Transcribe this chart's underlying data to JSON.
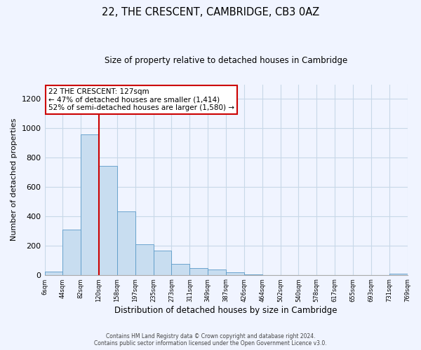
{
  "title": "22, THE CRESCENT, CAMBRIDGE, CB3 0AZ",
  "subtitle": "Size of property relative to detached houses in Cambridge",
  "bar_color": "#c8ddf0",
  "bar_edge_color": "#5a9ac8",
  "bar_heights": [
    20,
    310,
    960,
    745,
    435,
    210,
    165,
    75,
    48,
    35,
    18,
    5,
    0,
    0,
    0,
    0,
    0,
    0,
    0,
    8
  ],
  "x_labels": [
    "6sqm",
    "44sqm",
    "82sqm",
    "120sqm",
    "158sqm",
    "197sqm",
    "235sqm",
    "273sqm",
    "311sqm",
    "349sqm",
    "387sqm",
    "426sqm",
    "464sqm",
    "502sqm",
    "540sqm",
    "578sqm",
    "617sqm",
    "655sqm",
    "693sqm",
    "731sqm",
    "769sqm"
  ],
  "ylabel": "Number of detached properties",
  "xlabel": "Distribution of detached houses by size in Cambridge",
  "ylim": [
    0,
    1300
  ],
  "yticks": [
    0,
    200,
    400,
    600,
    800,
    1000,
    1200
  ],
  "vline_x": 3.0,
  "vline_color": "#cc0000",
  "annotation_text": "22 THE CRESCENT: 127sqm\n← 47% of detached houses are smaller (1,414)\n52% of semi-detached houses are larger (1,580) →",
  "annotation_box_color": "#ffffff",
  "annotation_box_edge": "#cc0000",
  "footer_line1": "Contains HM Land Registry data © Crown copyright and database right 2024.",
  "footer_line2": "Contains public sector information licensed under the Open Government Licence v3.0.",
  "bg_color": "#f0f4ff",
  "grid_color": "#c8d8e8"
}
